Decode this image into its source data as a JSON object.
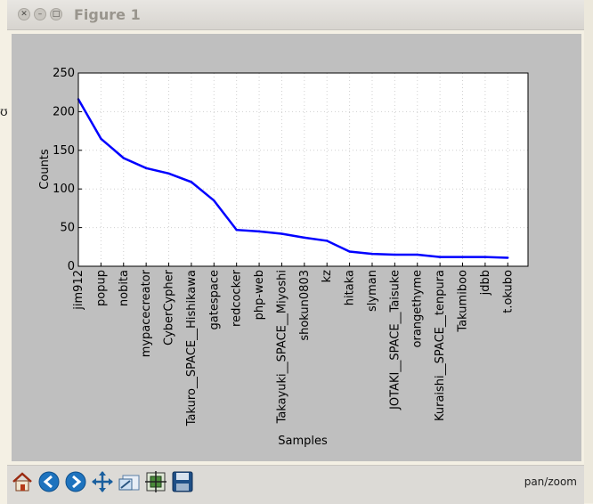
{
  "window": {
    "title": "Figure 1",
    "buttons": [
      "close",
      "minimize",
      "maximize"
    ]
  },
  "toolbar": {
    "buttons": [
      {
        "name": "home-button",
        "icon": "home-icon"
      },
      {
        "name": "back-button",
        "icon": "back-arrow-icon"
      },
      {
        "name": "forward-button",
        "icon": "forward-arrow-icon"
      },
      {
        "name": "pan-button",
        "icon": "pan-cross-icon"
      },
      {
        "name": "zoom-button",
        "icon": "zoom-rect-icon"
      },
      {
        "name": "subplots-button",
        "icon": "subplots-config-icon"
      },
      {
        "name": "save-button",
        "icon": "floppy-disk-icon"
      }
    ],
    "status": "pan/zoom"
  },
  "chart_data": {
    "type": "line",
    "xlabel": "Samples",
    "ylabel": "Counts",
    "ylim": [
      0,
      250
    ],
    "yticks": [
      0,
      50,
      100,
      150,
      200,
      250
    ],
    "grid": true,
    "color": "#0000ff",
    "categories": [
      "jim912",
      "popup",
      "nobita",
      "mypacecreator",
      "CyberCypher",
      "Takuro__SPACE__Hishikawa",
      "gatespace",
      "redcocker",
      "php-web",
      "Takayuki__SPACE__Miyoshi",
      "shokun0803",
      "kz",
      "hitaka",
      "slyman",
      "JOTAKI__SPACE__Taisuke",
      "orangethyme",
      "Kuraishi__SPACE__tenpura",
      "Takumiboo",
      "jdbb",
      "t.okubo"
    ],
    "values": [
      216,
      165,
      140,
      127,
      120,
      109,
      85,
      47,
      45,
      42,
      37,
      33,
      19,
      16,
      15,
      15,
      12,
      12,
      12,
      11
    ]
  }
}
